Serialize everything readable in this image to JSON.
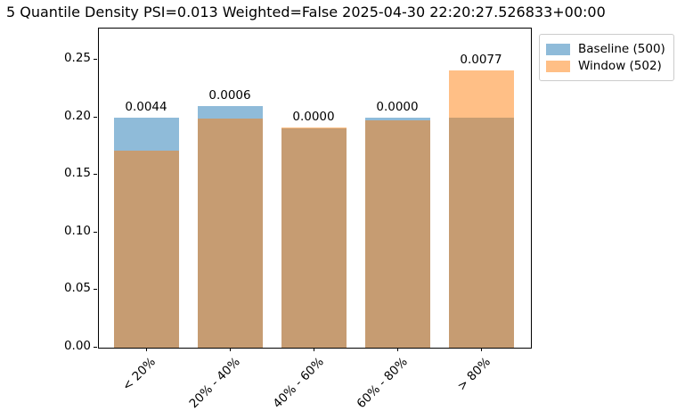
{
  "title": "5 Quantile Density PSI=0.013 Weighted=False 2025-04-30 22:20:27.526833+00:00",
  "legend": {
    "items": [
      {
        "label": "Baseline (500)",
        "color": "#8fbbd9"
      },
      {
        "label": "Window (502)",
        "color": "#ffbf86"
      }
    ]
  },
  "chart_data": {
    "type": "bar",
    "subtype": "overlapping-density-bars",
    "title": "5 Quantile Density PSI=0.013 Weighted=False 2025-04-30 22:20:27.526833+00:00",
    "categories": [
      "< 20%",
      "20% - 40%",
      "40% - 60%",
      "60% - 80%",
      "> 80%"
    ],
    "series": [
      {
        "name": "Baseline (500)",
        "color": "#8fbbd9",
        "values": [
          0.2,
          0.21,
          0.19,
          0.2,
          0.2
        ]
      },
      {
        "name": "Window (502)",
        "color": "#ffbf86",
        "values": [
          0.1713,
          0.1992,
          0.1912,
          0.1972,
          0.241
        ]
      }
    ],
    "overlap_color": "#c69c72",
    "bar_labels": [
      "0.0044",
      "0.0006",
      "0.0000",
      "0.0000",
      "0.0077"
    ],
    "xlabel": "",
    "ylabel": "",
    "yticks": [
      "0.00",
      "0.05",
      "0.10",
      "0.15",
      "0.20",
      "0.25"
    ],
    "ylim": [
      0,
      0.277
    ],
    "grid": false,
    "legend_position": "outside-upper-right",
    "psi_total": "0.013"
  }
}
